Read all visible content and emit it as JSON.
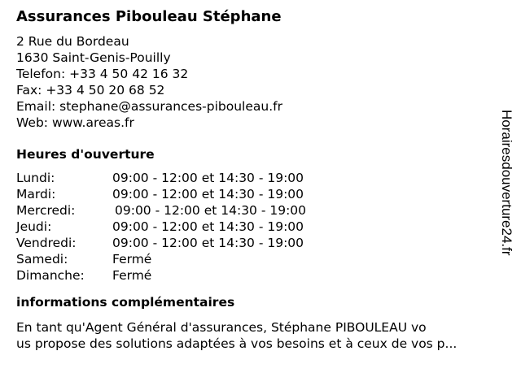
{
  "title": "Assurances Pibouleau Stéphane",
  "address": {
    "street": "2 Rue du Bordeau",
    "city": "1630 Saint-Genis-Pouilly",
    "phone": "Telefon: +33 4 50 42 16 32",
    "fax": "Fax: +33 4 50 20 68 52",
    "email": "Email: stephane@assurances-pibouleau.fr",
    "web": "Web: www.areas.fr"
  },
  "hours": {
    "heading": "Heures d'ouverture",
    "rows": [
      {
        "day": "Lundi:",
        "time": "09:00 - 12:00 et 14:30 - 19:00"
      },
      {
        "day": "Mardi:",
        "time": "09:00 - 12:00 et 14:30 - 19:00"
      },
      {
        "day": "Mercredi:",
        "time": "09:00 - 12:00 et 14:30 - 19:00"
      },
      {
        "day": "Jeudi:",
        "time": "09:00 - 12:00 et 14:30 - 19:00"
      },
      {
        "day": "Vendredi:",
        "time": "09:00 - 12:00 et 14:30 - 19:00"
      },
      {
        "day": "Samedi:",
        "time": "Fermé"
      },
      {
        "day": "Dimanche:",
        "time": "Fermé"
      }
    ]
  },
  "info": {
    "heading": "informations complémentaires",
    "line1": "En tant qu'Agent Général d'assurances, Stéphane PIBOULEAU vo",
    "line2": "us propose des solutions adaptées à vos besoins et à ceux de vos p..."
  },
  "watermark": "Horairesdouverture24.fr"
}
